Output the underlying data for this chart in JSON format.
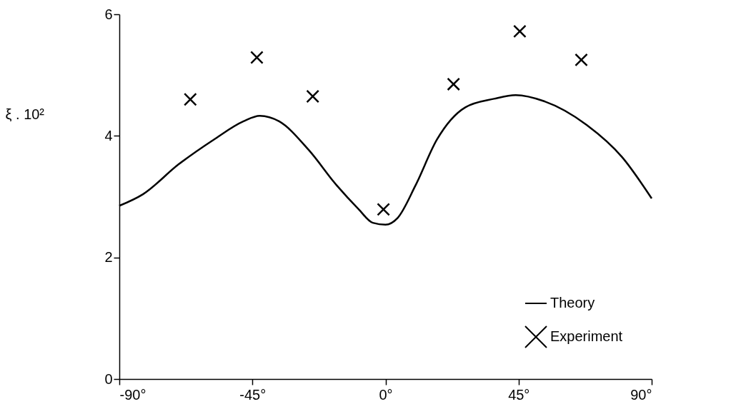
{
  "chart_data": {
    "type": "line",
    "ylabel": "ξ . 10²",
    "xlim": [
      -90,
      90
    ],
    "xticks": [
      {
        "value": -90,
        "label": "-90°"
      },
      {
        "value": -45,
        "label": "-45°"
      },
      {
        "value": 0,
        "label": "0°"
      },
      {
        "value": 45,
        "label": "45°"
      },
      {
        "value": 90,
        "label": "90°"
      }
    ],
    "ylim": [
      0,
      6
    ],
    "yticks": [
      0,
      2,
      4,
      6
    ],
    "grid": false,
    "legend": "bottom right",
    "series": [
      {
        "name": "Theory",
        "color": "#000000",
        "x": [
          -90,
          -82,
          -70,
          -58,
          -48,
          -42.5,
          -36,
          -26,
          -16.4,
          -9.2,
          -4.3,
          0,
          4.1,
          10.1,
          17.4,
          27,
          36.7,
          44,
          53.6,
          68,
          80,
          90
        ],
        "values": [
          2.85,
          3.04,
          3.53,
          3.94,
          4.24,
          4.33,
          4.24,
          3.77,
          3.18,
          2.8,
          2.57,
          2.54,
          2.65,
          3.18,
          3.94,
          4.47,
          4.61,
          4.67,
          4.57,
          4.18,
          3.65,
          2.97
        ]
      },
      {
        "name": "Experiment",
        "type": "scatter",
        "marker": "cross",
        "color": "#000000",
        "x": [
          -66,
          -43.5,
          -24.6,
          -0.7,
          23,
          45.4,
          66.2
        ],
        "values": [
          4.6,
          5.29,
          4.65,
          2.79,
          4.85,
          5.72,
          5.25
        ]
      }
    ]
  }
}
